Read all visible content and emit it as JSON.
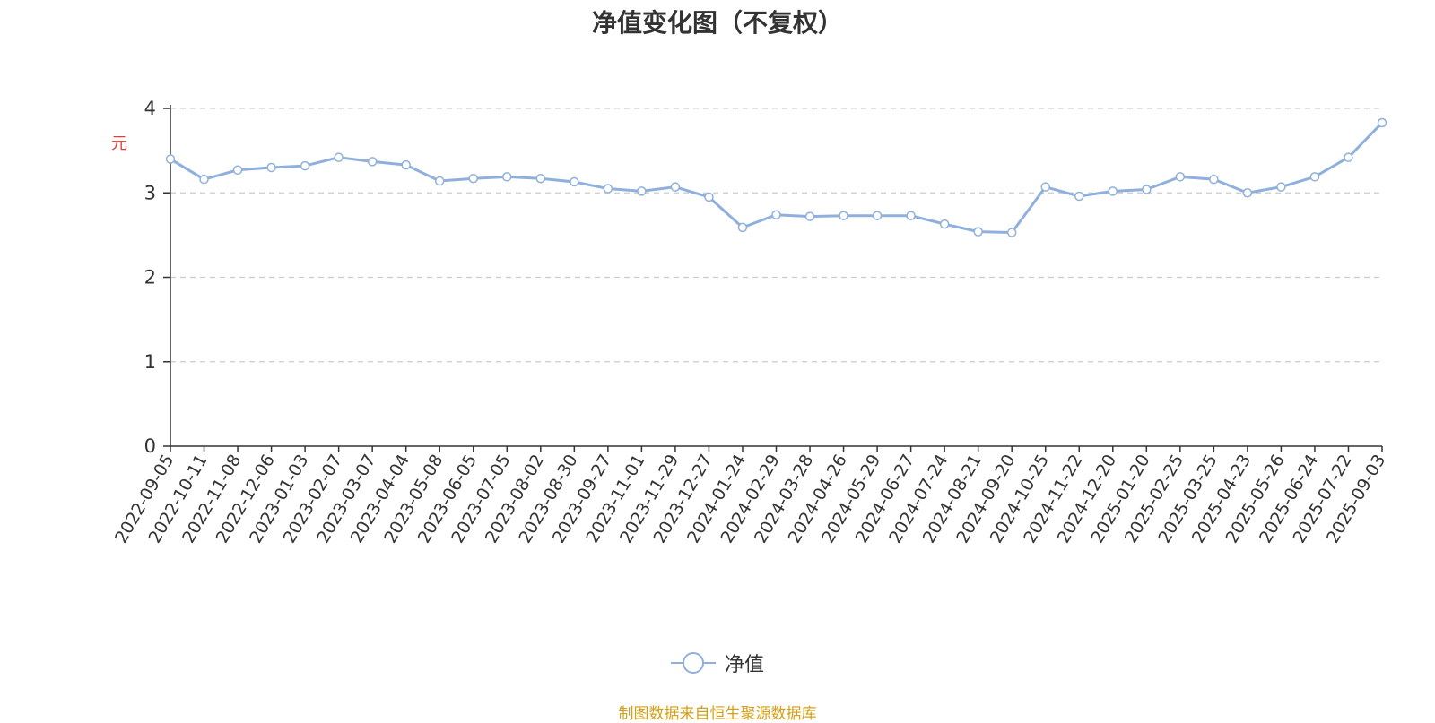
{
  "chart_data": {
    "type": "line",
    "title": "净值变化图（不复权）",
    "ylabel": "元",
    "ylim": [
      0,
      4
    ],
    "yticks": [
      0,
      1,
      2,
      3,
      4
    ],
    "grid": true,
    "legend_position": "bottom-center",
    "source_note": "制图数据来自恒生聚源数据库",
    "line_color": "#8fb0dc",
    "x": [
      "2022-09-05",
      "2022-10-11",
      "2022-11-08",
      "2022-12-06",
      "2023-01-03",
      "2023-02-07",
      "2023-03-07",
      "2023-04-04",
      "2023-05-08",
      "2023-06-05",
      "2023-07-05",
      "2023-08-02",
      "2023-08-30",
      "2023-09-27",
      "2023-11-01",
      "2023-11-29",
      "2023-12-27",
      "2024-01-24",
      "2024-02-29",
      "2024-03-28",
      "2024-04-26",
      "2024-05-29",
      "2024-06-27",
      "2024-07-24",
      "2024-08-21",
      "2024-09-20",
      "2024-10-25",
      "2024-11-22",
      "2024-12-20",
      "2025-01-20",
      "2025-02-25",
      "2025-03-25",
      "2025-04-23",
      "2025-05-26",
      "2025-06-24",
      "2025-07-22",
      "2025-09-03"
    ],
    "series": [
      {
        "name": "净值",
        "values": [
          3.4,
          3.16,
          3.27,
          3.3,
          3.32,
          3.42,
          3.37,
          3.33,
          3.14,
          3.17,
          3.19,
          3.17,
          3.13,
          3.05,
          3.02,
          3.07,
          2.95,
          2.59,
          2.74,
          2.72,
          2.73,
          2.73,
          2.73,
          2.63,
          2.54,
          2.53,
          3.07,
          2.96,
          3.02,
          3.04,
          3.19,
          3.16,
          3.0,
          3.07,
          3.19,
          3.42,
          3.83
        ]
      }
    ]
  },
  "legend": {
    "label": "净值"
  }
}
